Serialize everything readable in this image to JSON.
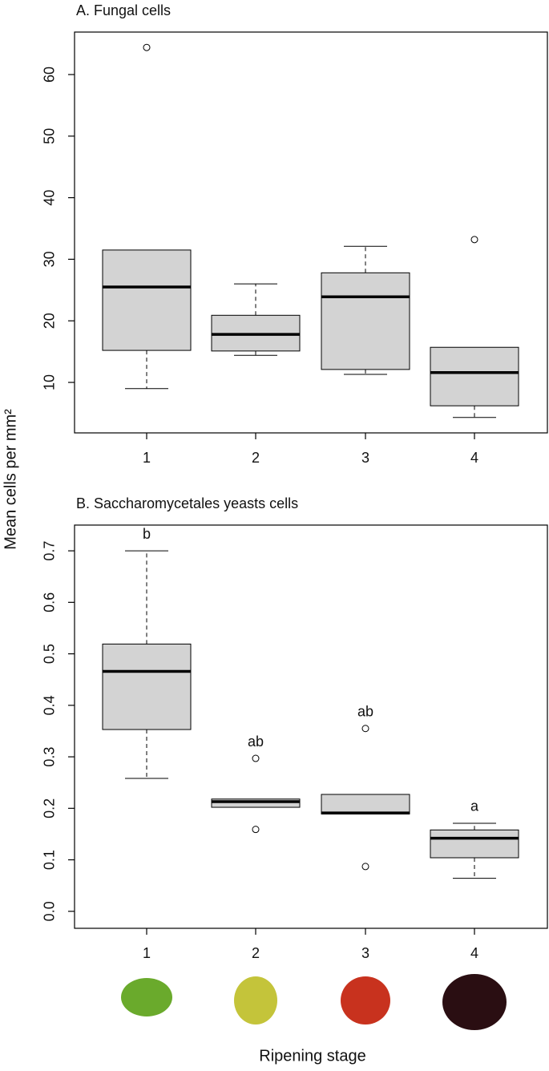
{
  "chart_data": [
    {
      "type": "box",
      "title": "A. Fungal cells",
      "ylabel": "Mean cells per mm²",
      "categories": [
        "1",
        "2",
        "3",
        "4"
      ],
      "boxes": [
        {
          "min": 9.0,
          "q1": 15.2,
          "median": 25.5,
          "q3": 31.5,
          "max": 31.5,
          "outliers": [
            64.4
          ]
        },
        {
          "min": 14.4,
          "q1": 15.1,
          "median": 17.8,
          "q3": 20.9,
          "max": 26.0,
          "outliers": []
        },
        {
          "min": 11.3,
          "q1": 12.1,
          "median": 23.9,
          "q3": 27.8,
          "max": 32.1,
          "outliers": []
        },
        {
          "min": 4.3,
          "q1": 6.2,
          "median": 11.6,
          "q3": 15.7,
          "max": 15.7,
          "outliers": [
            33.2
          ]
        }
      ],
      "ylim": [
        1.8,
        66.9
      ],
      "yticks": [
        10,
        20,
        30,
        40,
        50,
        60
      ],
      "color": "#d3d3d3"
    },
    {
      "type": "box",
      "title": "B. Saccharomycetales yeasts cells",
      "xlabel": "Ripening stage",
      "categories": [
        "1",
        "2",
        "3",
        "4"
      ],
      "boxes": [
        {
          "min": 0.258,
          "q1": 0.353,
          "median": 0.466,
          "q3": 0.519,
          "max": 0.7,
          "outliers": []
        },
        {
          "min": 0.202,
          "q1": 0.202,
          "median": 0.213,
          "q3": 0.218,
          "max": 0.218,
          "outliers": [
            0.297,
            0.159
          ]
        },
        {
          "min": 0.189,
          "q1": 0.189,
          "median": 0.191,
          "q3": 0.227,
          "max": 0.227,
          "outliers": [
            0.355,
            0.087
          ]
        },
        {
          "min": 0.064,
          "q1": 0.104,
          "median": 0.142,
          "q3": 0.158,
          "max": 0.171,
          "outliers": []
        }
      ],
      "annotations": [
        "b",
        "ab",
        "ab",
        "a"
      ],
      "ylim": [
        -0.033,
        0.75
      ],
      "yticks": [
        {
          "value": 0,
          "label": "0.0"
        },
        0.1,
        0.2,
        0.3,
        0.4,
        0.5,
        0.6,
        0.7
      ],
      "color": "#d3d3d3"
    }
  ]
}
